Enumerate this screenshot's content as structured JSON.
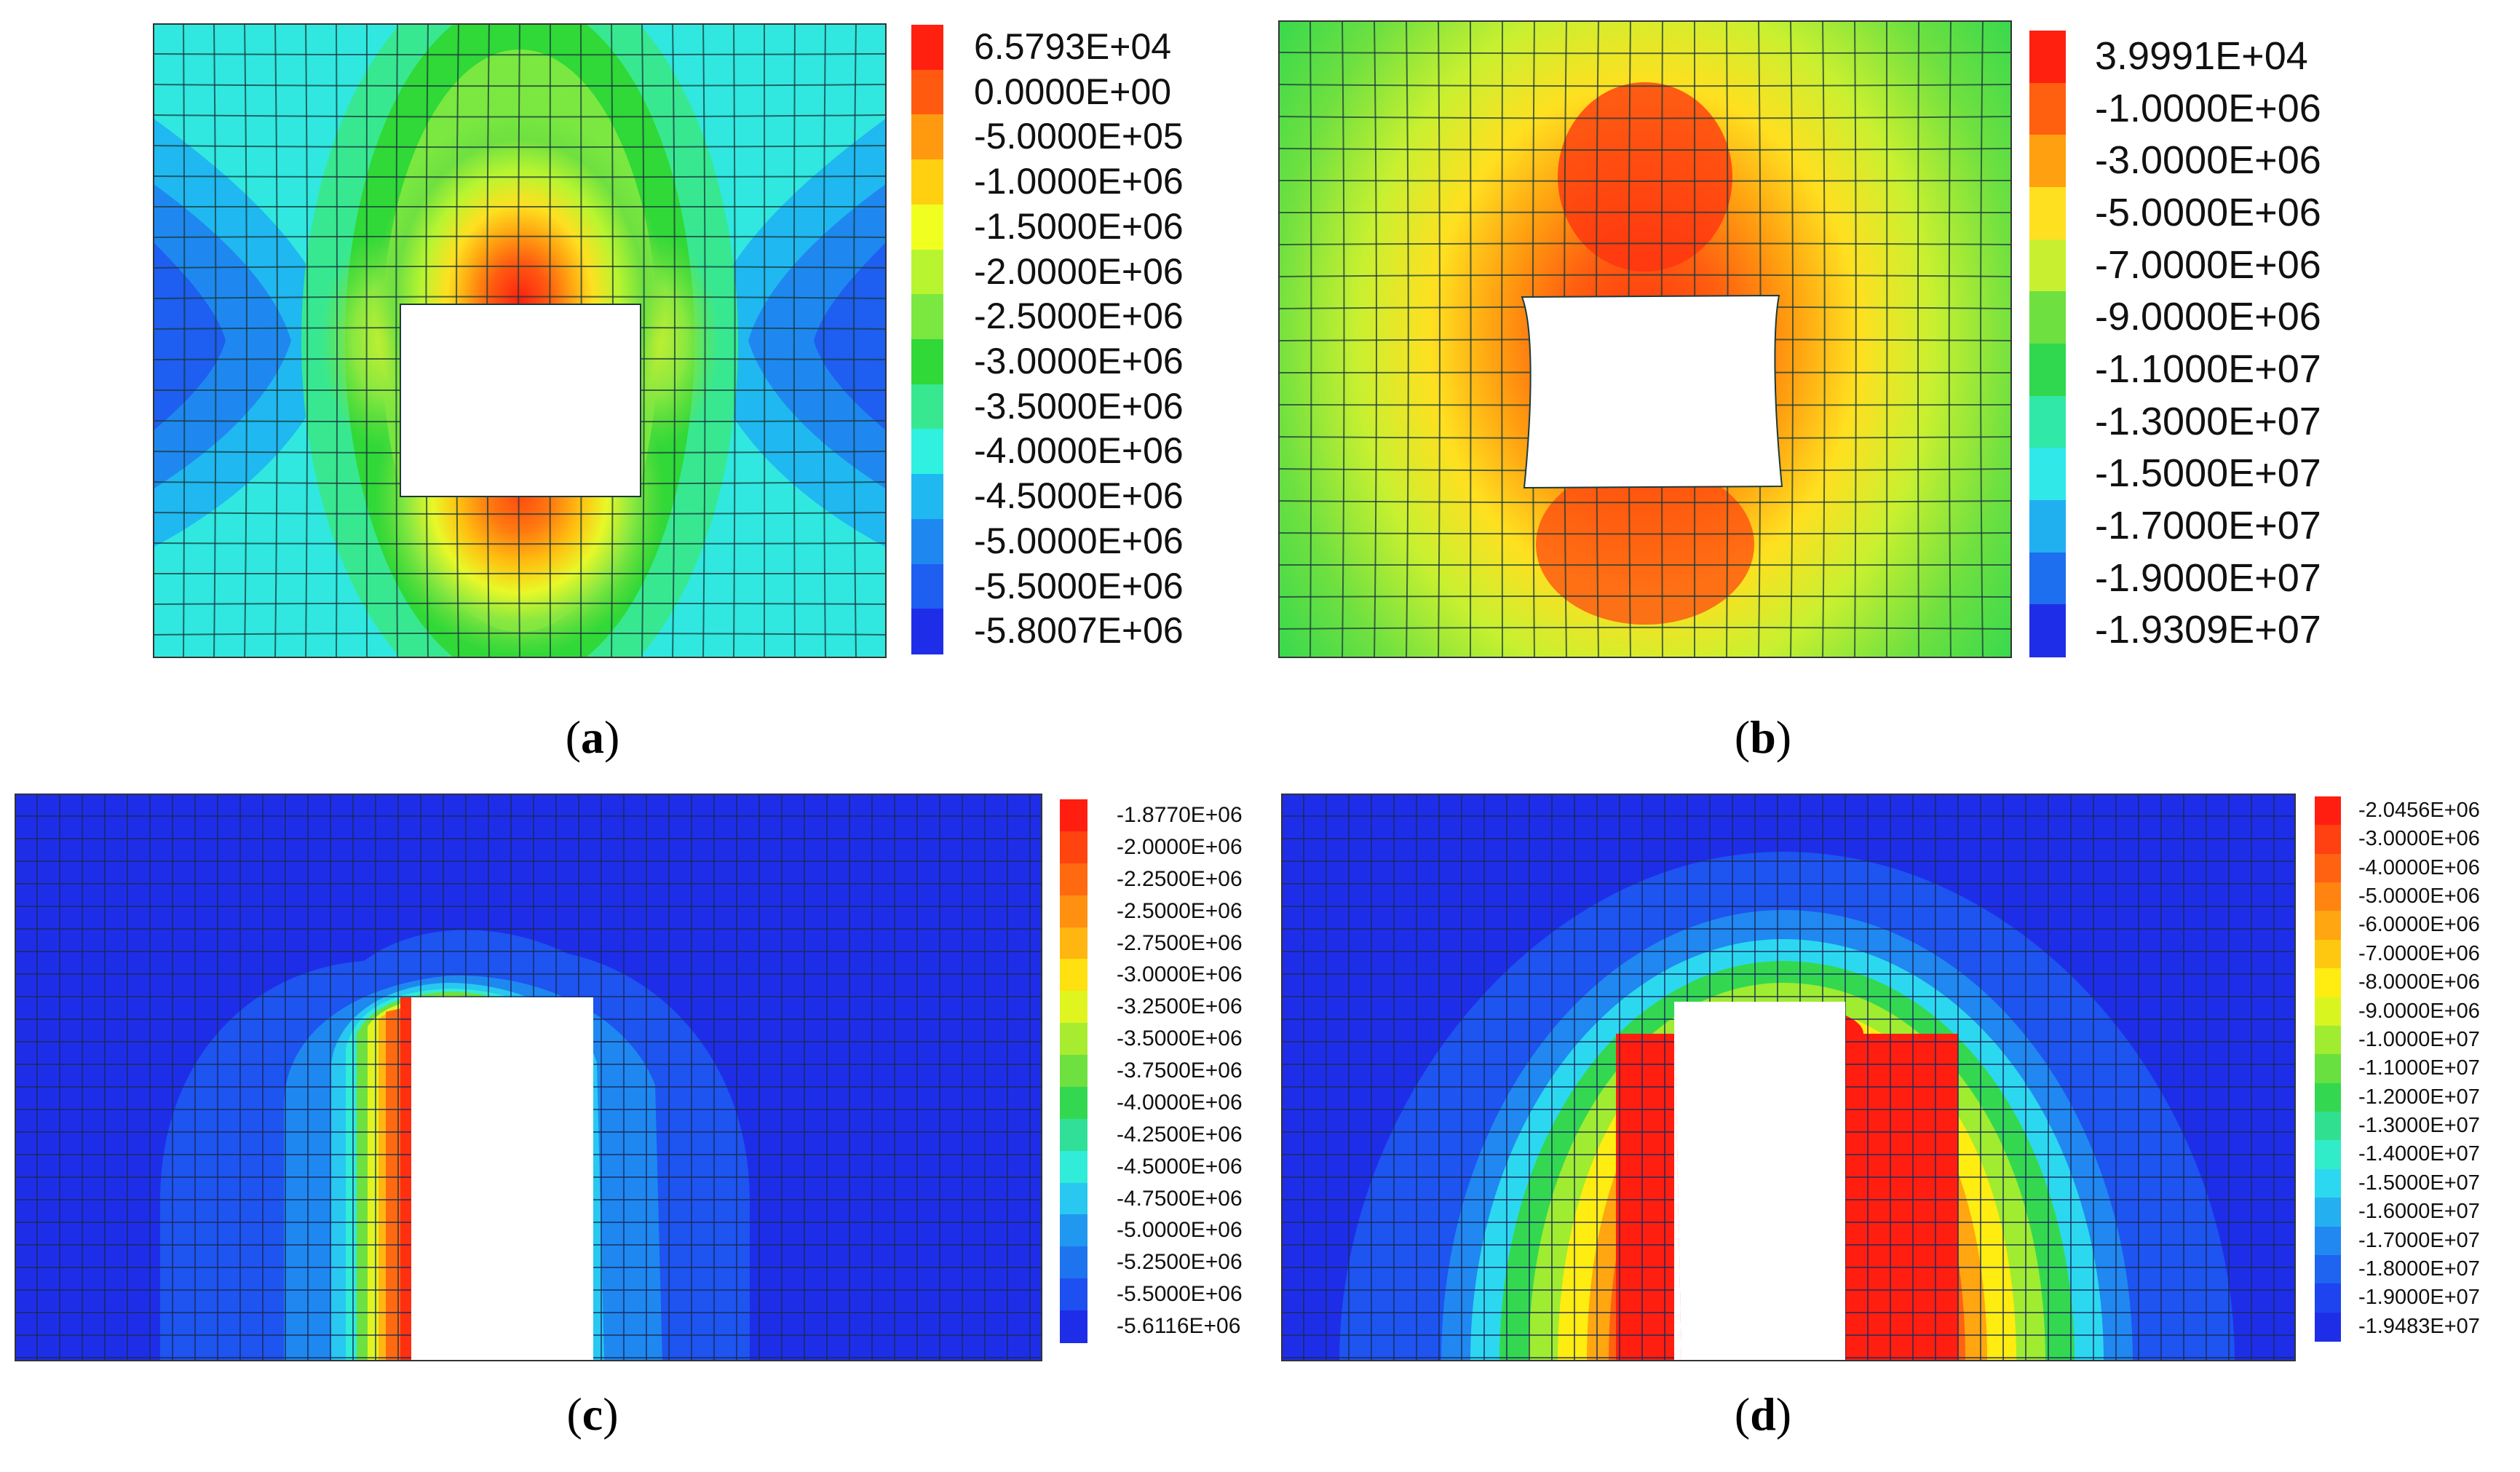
{
  "figure": {
    "panels": [
      {
        "id": "a",
        "caption_open": "(",
        "caption_letter": "a",
        "caption_close": ")",
        "legend": [
          "6.5793E+04",
          "0.0000E+00",
          "-5.0000E+05",
          "-1.0000E+06",
          "-1.5000E+06",
          "-2.0000E+06",
          "-2.5000E+06",
          "-3.0000E+06",
          "-3.5000E+06",
          "-4.0000E+06",
          "-4.5000E+06",
          "-5.0000E+06",
          "-5.5000E+06",
          "-5.8007E+06"
        ],
        "legend_colors": [
          "#ff2010",
          "#ff5a10",
          "#ff9a10",
          "#ffd010",
          "#f0ff20",
          "#b8f530",
          "#7ae840",
          "#30d838",
          "#38e890",
          "#30f0e0",
          "#20b8f0",
          "#1e88f0",
          "#1e5ef0",
          "#1e2ee8"
        ]
      },
      {
        "id": "b",
        "caption_open": "(",
        "caption_letter": "b",
        "caption_close": ")",
        "legend": [
          "3.9991E+04",
          "-1.0000E+06",
          "-3.0000E+06",
          "-5.0000E+06",
          "-7.0000E+06",
          "-9.0000E+06",
          "-1.1000E+07",
          "-1.3000E+07",
          "-1.5000E+07",
          "-1.7000E+07",
          "-1.9000E+07",
          "-1.9309E+07"
        ],
        "legend_colors": [
          "#ff2010",
          "#ff6010",
          "#ffa010",
          "#ffe020",
          "#c8f030",
          "#6ee040",
          "#30d850",
          "#30e8a8",
          "#30e8e8",
          "#20b0f0",
          "#1e6ef0",
          "#1e2ee8"
        ]
      },
      {
        "id": "c",
        "caption_open": "(",
        "caption_letter": "c",
        "caption_close": ")",
        "legend": [
          "-1.8770E+06",
          "-2.0000E+06",
          "-2.2500E+06",
          "-2.5000E+06",
          "-2.7500E+06",
          "-3.0000E+06",
          "-3.2500E+06",
          "-3.5000E+06",
          "-3.7500E+06",
          "-4.0000E+06",
          "-4.2500E+06",
          "-4.5000E+06",
          "-4.7500E+06",
          "-5.0000E+06",
          "-5.2500E+06",
          "-5.5000E+06",
          "-5.6116E+06"
        ],
        "legend_colors": [
          "#ff1e10",
          "#ff4410",
          "#ff6a10",
          "#ff9010",
          "#ffb610",
          "#ffe010",
          "#e0f520",
          "#a8ec30",
          "#6ee040",
          "#34d850",
          "#30e098",
          "#30ecd8",
          "#28c8f0",
          "#2098f0",
          "#1e74ef",
          "#1e4ff0",
          "#1e2ee8"
        ]
      },
      {
        "id": "d",
        "caption_open": "(",
        "caption_letter": "d",
        "caption_close": ")",
        "legend": [
          "-2.0456E+06",
          "-3.0000E+06",
          "-4.0000E+06",
          "-5.0000E+06",
          "-6.0000E+06",
          "-7.0000E+06",
          "-8.0000E+06",
          "-9.0000E+06",
          "-1.0000E+07",
          "-1.1000E+07",
          "-1.2000E+07",
          "-1.3000E+07",
          "-1.4000E+07",
          "-1.5000E+07",
          "-1.6000E+07",
          "-1.7000E+07",
          "-1.8000E+07",
          "-1.9000E+07",
          "-1.9483E+07"
        ],
        "legend_colors": [
          "#ff1e10",
          "#ff4010",
          "#ff6210",
          "#ff8410",
          "#ffa610",
          "#ffc810",
          "#ffec10",
          "#d8f520",
          "#a0ec30",
          "#68e040",
          "#34d850",
          "#30e090",
          "#30ecc8",
          "#2cd8f0",
          "#24b0f0",
          "#2088f0",
          "#1e64f0",
          "#1e44ef",
          "#1e2ee8"
        ]
      }
    ]
  }
}
